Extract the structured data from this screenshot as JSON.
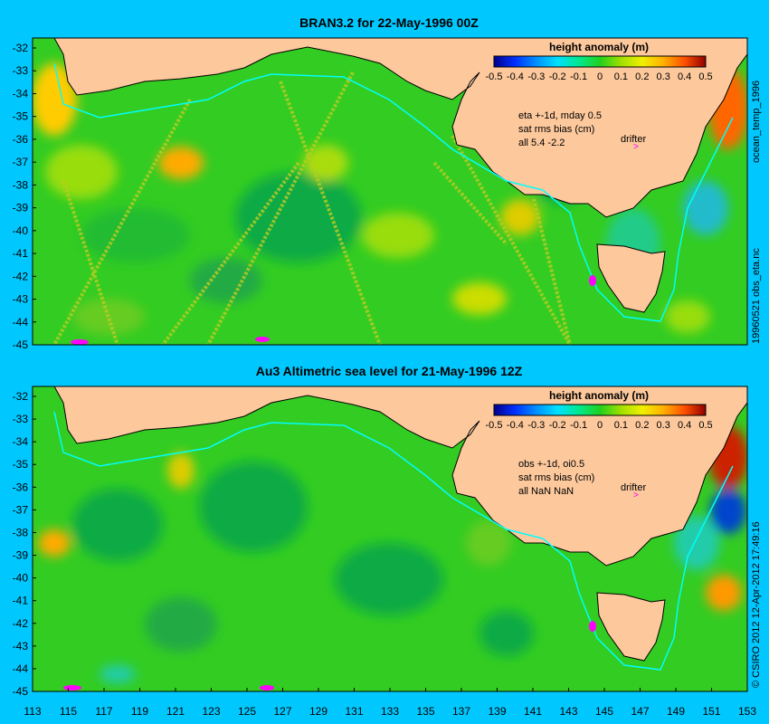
{
  "top_panel": {
    "title": "BRAN3.2 for 22-May-1996 00Z",
    "colorbar_title": "height anomaly (m)",
    "colorbar_ticks": [
      "-0.5",
      "-0.4",
      "-0.3",
      "-0.2",
      "-0.1",
      "0",
      "0.1",
      "0.2",
      "0.3",
      "0.4",
      "0.5"
    ],
    "stats_lines": [
      "eta +-1d, mday 0.5",
      "sat rms bias (cm)",
      "all 5.4 -2.2"
    ],
    "drifter_label": "drifter",
    "side_label": "ocean_temp_1996",
    "side_label_2": "19960521 obs_eta.nc"
  },
  "bottom_panel": {
    "title": "Au3 Altimetric sea level  for 21-May-1996 12Z",
    "colorbar_title": "height anomaly (m)",
    "colorbar_ticks": [
      "-0.5",
      "-0.4",
      "-0.3",
      "-0.2",
      "-0.1",
      "0",
      "0.1",
      "0.2",
      "0.3",
      "0.4",
      "0.5"
    ],
    "stats_lines": [
      "obs +-1d, oi0.5",
      "sat rms bias (cm)",
      "all NaN NaN"
    ],
    "drifter_label": "drifter",
    "side_label": "© CSIRO 2012  12-Apr-2012 17:49:16"
  },
  "axes": {
    "y_ticks": [
      "-32",
      "-33",
      "-34",
      "-35",
      "-36",
      "-37",
      "-38",
      "-39",
      "-40",
      "-41",
      "-42",
      "-43",
      "-44",
      "-45"
    ],
    "x_ticks": [
      "113",
      "115",
      "117",
      "119",
      "121",
      "123",
      "125",
      "127",
      "129",
      "131",
      "133",
      "135",
      "137",
      "139",
      "141",
      "143",
      "145",
      "147",
      "149",
      "151",
      "153"
    ],
    "lon_range": [
      113,
      153
    ],
    "lat_range": [
      -45,
      -32
    ]
  },
  "colors": {
    "background": "#00c8ff",
    "land": "#fcc89c",
    "ocean_base": "#33cc22",
    "coast_line": "#000000",
    "contour_line": "#00ffff",
    "drifter": "#ff00ff"
  }
}
